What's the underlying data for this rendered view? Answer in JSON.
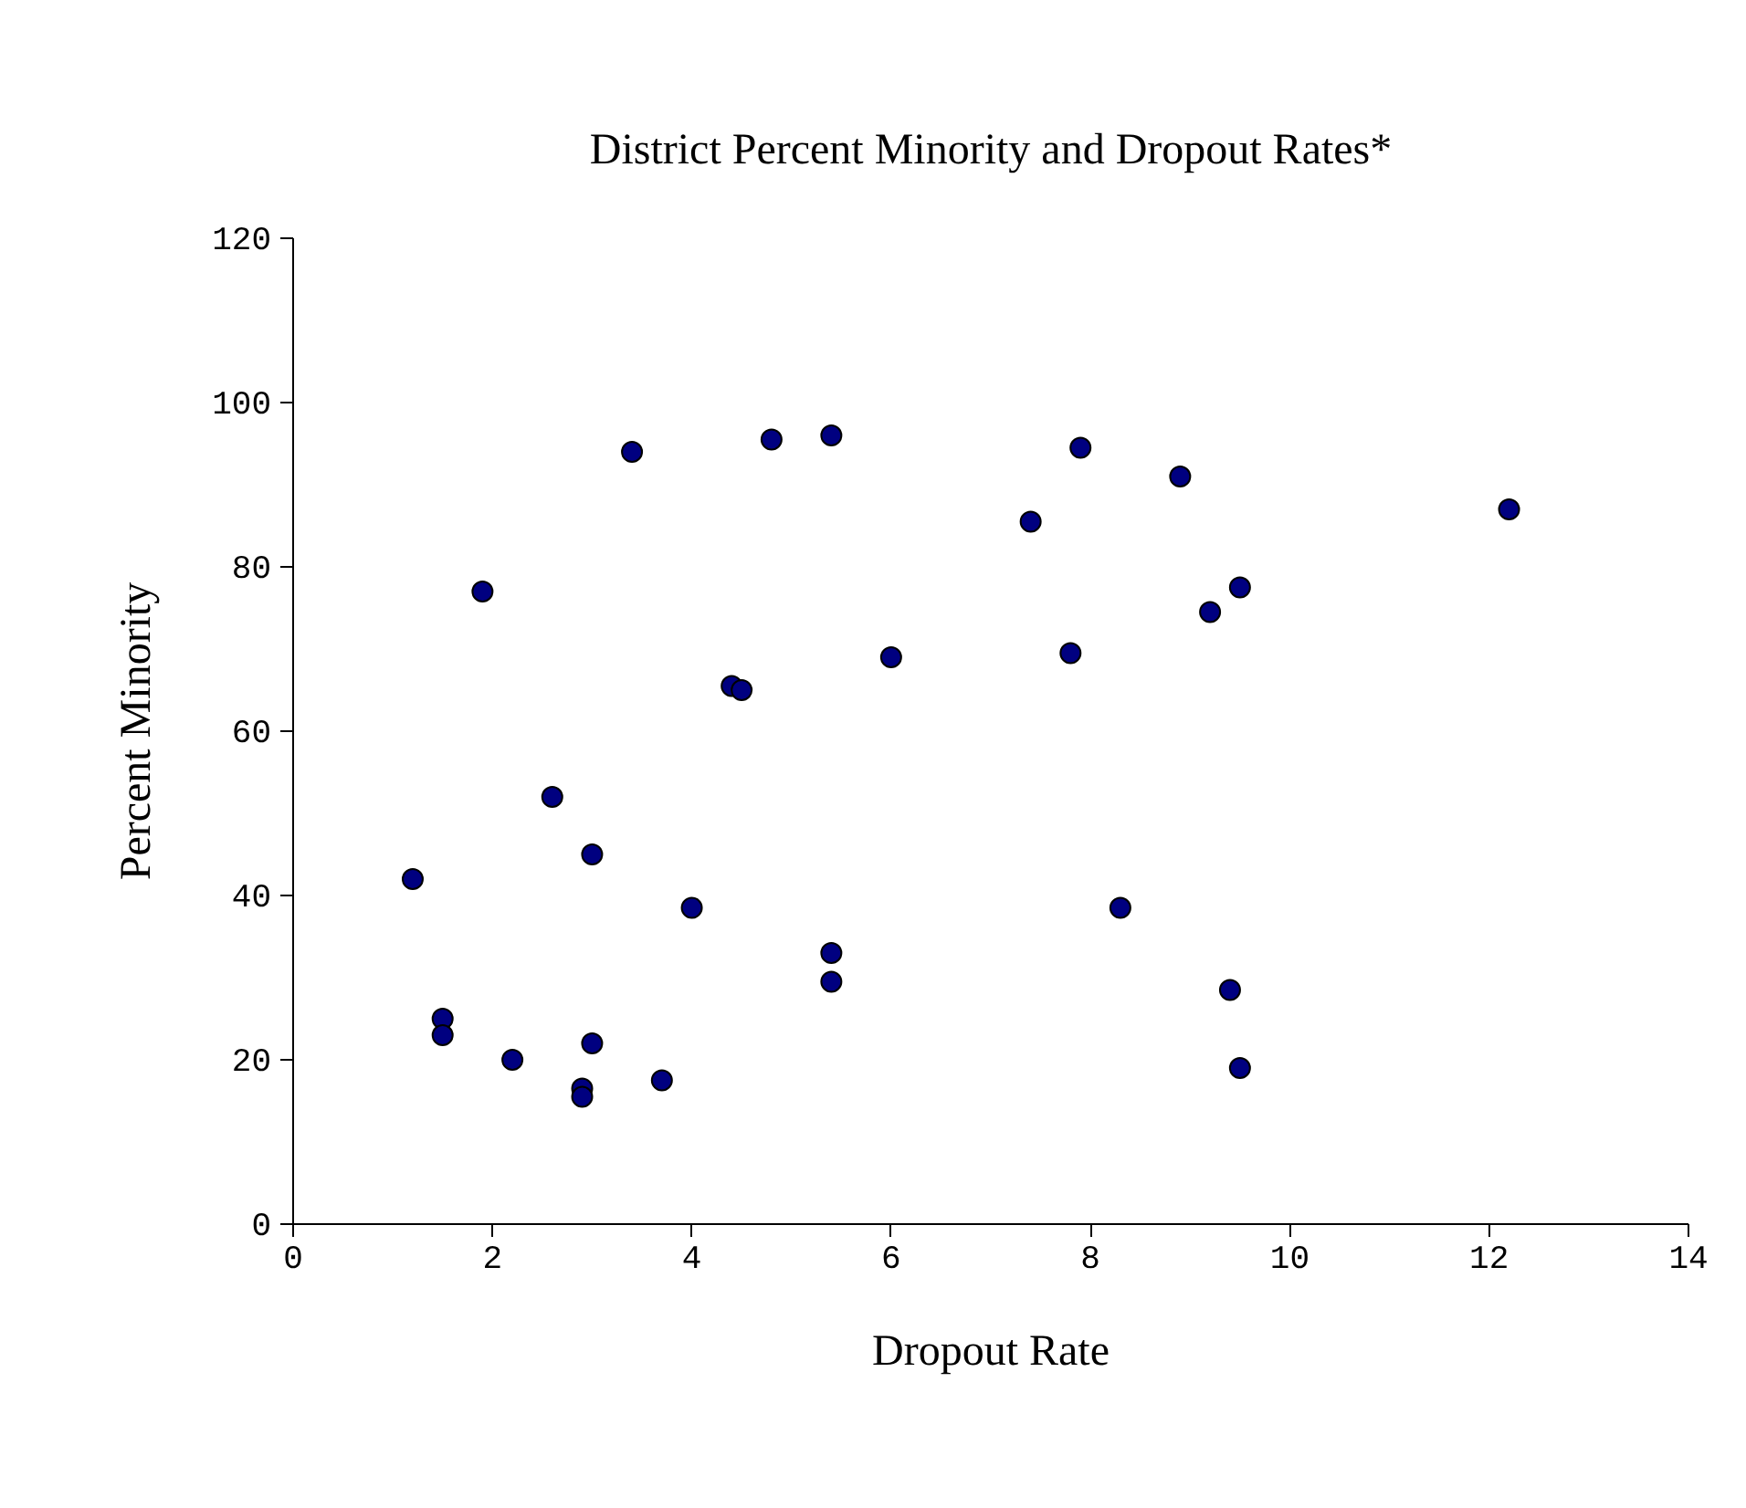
{
  "chart_data": {
    "type": "scatter",
    "title": "District Percent Minority and Dropout Rates*",
    "xlabel": "Dropout Rate",
    "ylabel": "Percent Minority",
    "x": [
      3.4,
      4.8,
      5.4,
      1.9,
      6.0,
      4.4,
      4.5,
      2.6,
      3.0,
      1.2,
      4.0,
      5.4,
      5.4,
      1.5,
      1.5,
      3.0,
      2.2,
      2.9,
      2.9,
      3.7,
      7.9,
      8.9,
      7.4,
      12.2,
      9.5,
      9.2,
      7.8,
      8.3,
      9.4,
      9.5
    ],
    "series": [
      {
        "color": "#000080",
        "values": [
          94,
          95.5,
          96,
          77,
          69,
          65.5,
          65,
          52,
          45,
          42,
          38.5,
          33,
          29.5,
          25,
          23,
          22,
          20,
          16.5,
          15.5,
          17.5,
          94.5,
          91,
          85.5,
          87,
          77.5,
          74.5,
          69.5,
          38.5,
          28.5,
          19
        ]
      }
    ],
    "xlim": [
      0,
      14
    ],
    "xticks": [
      0,
      2,
      4,
      6,
      8,
      10,
      12,
      14
    ],
    "ylim": [
      0,
      120
    ],
    "yticks": [
      0,
      20,
      40,
      60,
      80,
      100,
      120
    ],
    "grid": false,
    "marker": "circle"
  }
}
